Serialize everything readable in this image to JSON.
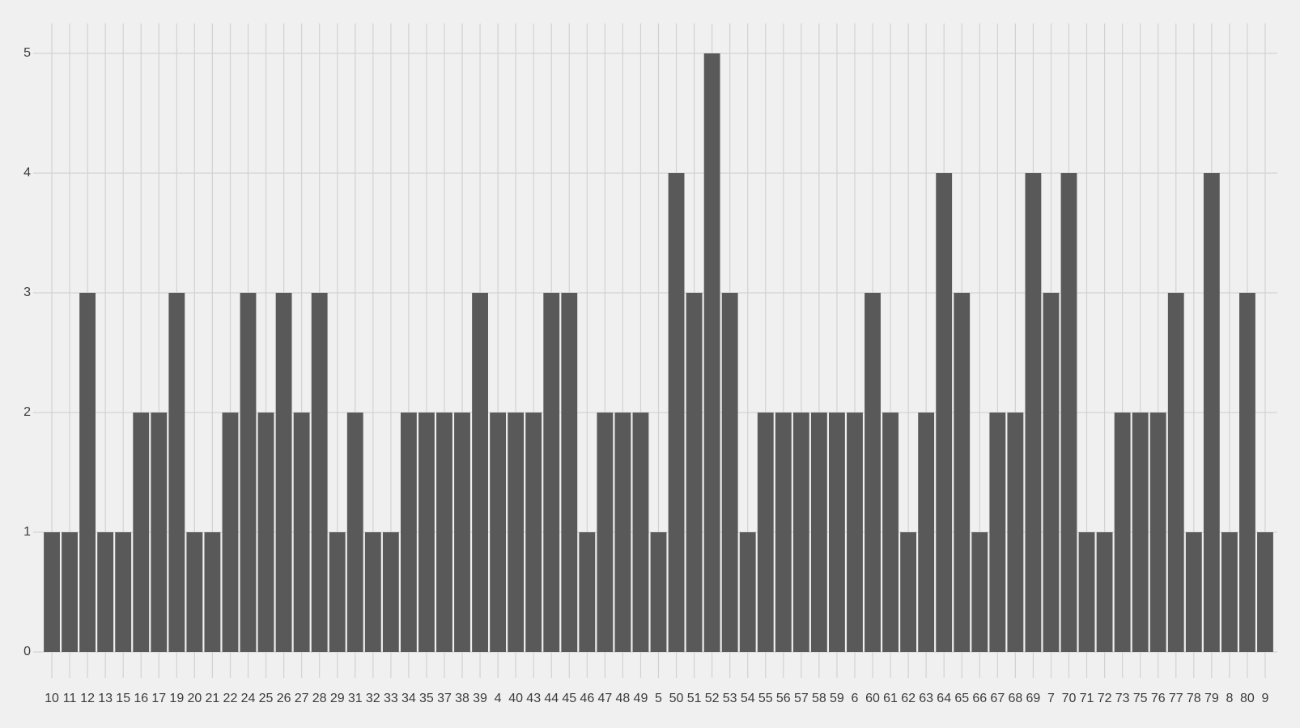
{
  "chart_data": {
    "type": "bar",
    "categories": [
      "10",
      "11",
      "12",
      "13",
      "15",
      "16",
      "17",
      "19",
      "20",
      "21",
      "22",
      "24",
      "25",
      "26",
      "27",
      "28",
      "29",
      "31",
      "32",
      "33",
      "34",
      "35",
      "37",
      "38",
      "39",
      "4",
      "40",
      "43",
      "44",
      "45",
      "46",
      "47",
      "48",
      "49",
      "5",
      "50",
      "51",
      "52",
      "53",
      "54",
      "55",
      "56",
      "57",
      "58",
      "59",
      "6",
      "60",
      "61",
      "62",
      "63",
      "64",
      "65",
      "66",
      "67",
      "68",
      "69",
      "7",
      "70",
      "71",
      "72",
      "73",
      "75",
      "76",
      "77",
      "78",
      "79",
      "8",
      "80",
      "9"
    ],
    "values": [
      1,
      1,
      3,
      1,
      1,
      2,
      2,
      3,
      1,
      1,
      2,
      3,
      2,
      3,
      2,
      3,
      1,
      2,
      1,
      1,
      2,
      2,
      2,
      2,
      3,
      2,
      2,
      2,
      3,
      3,
      1,
      2,
      2,
      2,
      1,
      4,
      3,
      5,
      3,
      1,
      2,
      2,
      2,
      2,
      2,
      2,
      3,
      2,
      1,
      2,
      4,
      3,
      1,
      2,
      2,
      4,
      3,
      4,
      1,
      1,
      2,
      2,
      2,
      3,
      1,
      4,
      1,
      3,
      1
    ],
    "color": "#595959",
    "ylim": [
      0,
      5.25
    ],
    "yticks": [
      0,
      1,
      2,
      3,
      4,
      5
    ],
    "grid": true
  }
}
